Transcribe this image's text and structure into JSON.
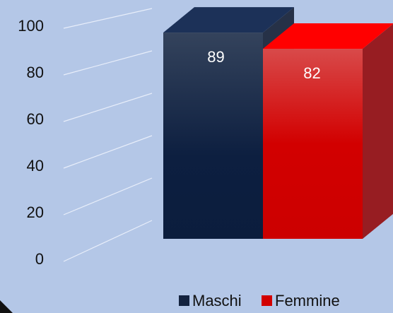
{
  "chart_data": {
    "type": "bar",
    "categories": [
      null
    ],
    "series": [
      {
        "name": "Maschi",
        "color": "#14233f",
        "values": [
          89
        ]
      },
      {
        "name": "Femmine",
        "color": "#d20000",
        "values": [
          82
        ]
      }
    ],
    "ylim": [
      0,
      100
    ],
    "yticks": [
      0,
      20,
      40,
      60,
      80,
      100
    ],
    "grid": true,
    "legend": "bottom"
  }
}
